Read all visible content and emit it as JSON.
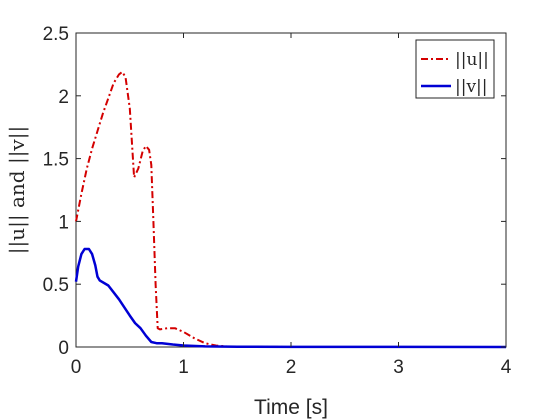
{
  "chart_data": {
    "type": "line",
    "xlabel": "Time [s]",
    "ylabel": "||u|| and ||v||",
    "xlim": [
      0,
      4
    ],
    "ylim": [
      0,
      2.5
    ],
    "xticks": [
      "0",
      "1",
      "2",
      "3",
      "4"
    ],
    "yticks": [
      "0",
      "0.5",
      "1",
      "1.5",
      "2",
      "2.5"
    ],
    "grid": false,
    "legend_position": "top-right",
    "series": [
      {
        "name": "||u||",
        "color": "#d40000",
        "style": "dash-dot",
        "x": [
          0,
          0.05,
          0.1,
          0.15,
          0.2,
          0.25,
          0.3,
          0.35,
          0.4,
          0.43,
          0.46,
          0.5,
          0.54,
          0.58,
          0.62,
          0.65,
          0.68,
          0.7,
          0.72,
          0.74,
          0.76,
          0.78,
          0.85,
          0.92,
          1.0,
          1.1,
          1.2,
          1.3,
          1.4,
          1.6,
          2.0,
          3.0,
          4.0
        ],
        "y": [
          1.0,
          1.22,
          1.42,
          1.58,
          1.72,
          1.86,
          1.98,
          2.1,
          2.17,
          2.19,
          2.15,
          1.9,
          1.35,
          1.42,
          1.56,
          1.6,
          1.57,
          1.45,
          1.0,
          0.5,
          0.15,
          0.14,
          0.15,
          0.15,
          0.12,
          0.07,
          0.03,
          0.012,
          0.005,
          0.002,
          0,
          0,
          0
        ]
      },
      {
        "name": "||v||",
        "color": "#0000d4",
        "style": "solid",
        "x": [
          0,
          0.02,
          0.05,
          0.08,
          0.12,
          0.15,
          0.18,
          0.2,
          0.22,
          0.3,
          0.4,
          0.5,
          0.55,
          0.6,
          0.65,
          0.7,
          0.75,
          0.8,
          0.9,
          1.0,
          1.2,
          1.5,
          2.0,
          3.0,
          4.0
        ],
        "y": [
          0.52,
          0.64,
          0.74,
          0.78,
          0.78,
          0.74,
          0.65,
          0.56,
          0.53,
          0.49,
          0.38,
          0.25,
          0.19,
          0.15,
          0.09,
          0.04,
          0.03,
          0.03,
          0.02,
          0.012,
          0.005,
          0.002,
          0.001,
          0.0005,
          0.0003
        ]
      }
    ]
  }
}
